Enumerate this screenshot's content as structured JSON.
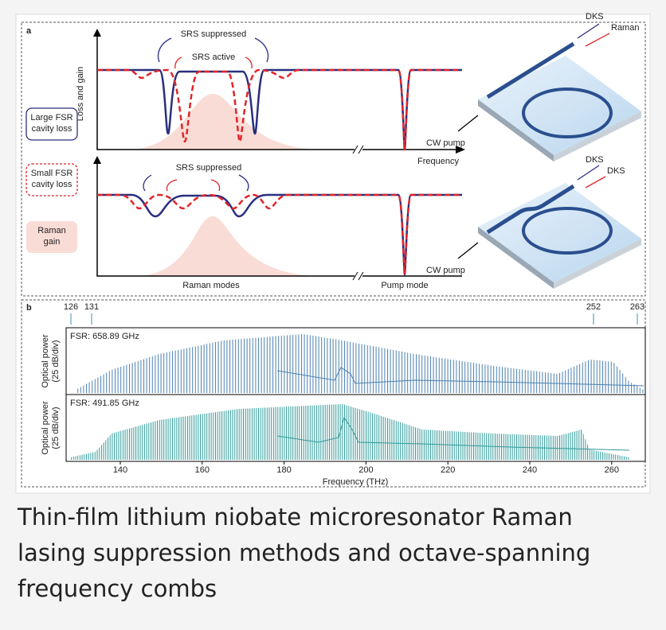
{
  "panel_a": {
    "label": "a",
    "y_axis": "Loss and gain",
    "top": {
      "annotations": [
        "SRS suppressed",
        "SRS active"
      ],
      "x_axis": "Frequency"
    },
    "bottom": {
      "annotations": [
        "SRS suppressed"
      ],
      "x_labels": [
        "Raman modes",
        "Pump mode"
      ]
    },
    "legend": [
      [
        "Large FSR",
        "cavity loss"
      ],
      [
        "Small FSR",
        "cavity loss"
      ],
      [
        "Raman",
        "gain"
      ]
    ],
    "devices": [
      {
        "outputs": [
          "DKS",
          "Raman"
        ],
        "input": "CW pump"
      },
      {
        "outputs": [
          "DKS",
          "DKS"
        ],
        "input": "CW pump"
      }
    ]
  },
  "panel_b": {
    "label": "b",
    "markers": [
      "126",
      "131",
      "252",
      "263"
    ],
    "top": {
      "fsr": "FSR: 658.89 GHz"
    },
    "bottom": {
      "fsr": "FSR: 491.85 GHz"
    },
    "y_label": [
      "Optical power",
      "(25 dB/div)"
    ],
    "x_ticks": [
      "140",
      "160",
      "180",
      "200",
      "220",
      "240",
      "260"
    ],
    "x_label": "Frequency (THz)"
  },
  "caption": "Thin-film lithium niobate microresonator Raman lasing suppression methods and octave-spanning frequency combs"
}
